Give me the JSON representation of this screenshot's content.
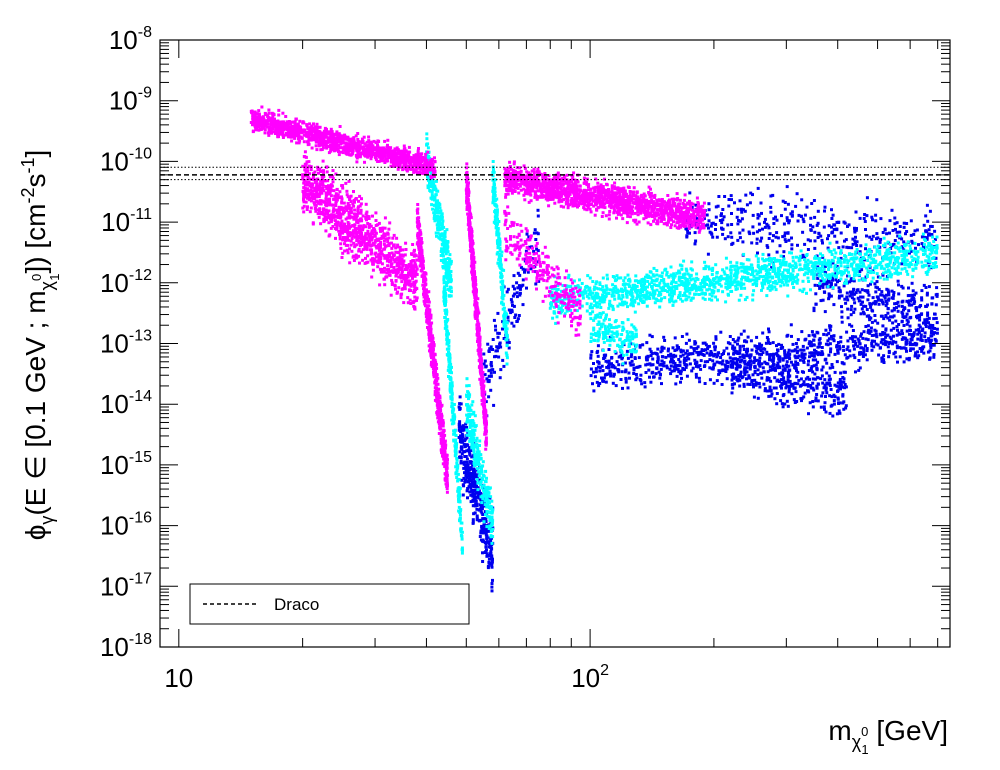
{
  "chart_data": {
    "type": "scatter",
    "x_scale": "log",
    "y_scale": "log",
    "xlim": [
      9,
      750
    ],
    "ylim": [
      1e-18,
      1e-08
    ],
    "x_ticks": [
      {
        "value": 10,
        "base": "10",
        "exp": ""
      },
      {
        "value": 100,
        "base": "10",
        "exp": "2"
      }
    ],
    "y_ticks": [
      {
        "value": 1e-08,
        "base": "10",
        "exp": "-8"
      },
      {
        "value": 1e-09,
        "base": "10",
        "exp": "-9"
      },
      {
        "value": 1e-10,
        "base": "10",
        "exp": "-10"
      },
      {
        "value": 1e-11,
        "base": "10",
        "exp": "-11"
      },
      {
        "value": 1e-12,
        "base": "10",
        "exp": "-12"
      },
      {
        "value": 1e-13,
        "base": "10",
        "exp": "-13"
      },
      {
        "value": 1e-14,
        "base": "10",
        "exp": "-14"
      },
      {
        "value": 1e-15,
        "base": "10",
        "exp": "-15"
      },
      {
        "value": 1e-16,
        "base": "10",
        "exp": "-16"
      },
      {
        "value": 1e-17,
        "base": "10",
        "exp": "-17"
      },
      {
        "value": 1e-18,
        "base": "10",
        "exp": "-18"
      }
    ],
    "xlabel": "m_χ₁⁰ [GeV]",
    "ylabel": "φ_γ(E ∈ [0.1 GeV ; m_χ₁⁰]) [cm⁻²s⁻¹]",
    "grid": false,
    "legend_position": "bottom-left",
    "colors": {
      "magenta": "#ff00ff",
      "cyan": "#00ffff",
      "blue": "#0000ee",
      "axis": "#000000"
    },
    "reference_lines": [
      {
        "name": "Draco",
        "style": "dashed",
        "y": 6e-11
      },
      {
        "style": "dotted",
        "y": 8e-11
      },
      {
        "style": "dotted",
        "y": 5e-11
      }
    ],
    "series": [
      {
        "color": "#0000ee",
        "regions": [
          {
            "x": [
              48,
              58
            ],
            "y": [
              3e-15,
              4e-17
            ],
            "spread": 0.6,
            "n": 380
          },
          {
            "x": [
              55,
              75
            ],
            "y": [
              2e-14,
              5e-12
            ],
            "spread": 0.6,
            "n": 140
          },
          {
            "x": [
              100,
              700
            ],
            "y": [
              4e-14,
              1.2e-13
            ],
            "spread": 0.35,
            "n": 900
          },
          {
            "x": [
              220,
              420
            ],
            "y": [
              4e-14,
              1.5e-14
            ],
            "spread": 0.4,
            "n": 350
          },
          {
            "x": [
              170,
              700
            ],
            "y": [
              1.2e-11,
              5e-12
            ],
            "spread": 0.5,
            "n": 400
          },
          {
            "x": [
              350,
              700
            ],
            "y": [
              1e-12,
              3e-13
            ],
            "spread": 0.45,
            "n": 350
          }
        ]
      },
      {
        "color": "#00ffff",
        "regions": [
          {
            "x": [
              40,
              46
            ],
            "y": [
              1.2e-10,
              1e-12
            ],
            "spread": 0.4,
            "n": 300
          },
          {
            "x": [
              44,
              49
            ],
            "y": [
              1e-12,
              5e-17
            ],
            "spread": 0.35,
            "n": 250
          },
          {
            "x": [
              50,
              58
            ],
            "y": [
              1e-14,
              1e-16
            ],
            "spread": 0.45,
            "n": 250
          },
          {
            "x": [
              58,
              63
            ],
            "y": [
              5e-11,
              1e-13
            ],
            "spread": 0.4,
            "n": 200
          },
          {
            "x": [
              80,
              700
            ],
            "y": [
              5e-13,
              3e-12
            ],
            "spread": 0.3,
            "n": 1500
          },
          {
            "x": [
              100,
              130
            ],
            "y": [
              2e-13,
              1e-13
            ],
            "spread": 0.3,
            "n": 150
          }
        ]
      },
      {
        "color": "#ff00ff",
        "regions": [
          {
            "x": [
              15,
              42
            ],
            "y": [
              5e-10,
              8e-11
            ],
            "spread": 0.18,
            "n": 1300
          },
          {
            "x": [
              20,
              38
            ],
            "y": [
              5e-11,
              1e-12
            ],
            "spread": 0.5,
            "n": 1000
          },
          {
            "x": [
              38,
              45
            ],
            "y": [
              1e-11,
              6e-16
            ],
            "spread": 0.35,
            "n": 600
          },
          {
            "x": [
              50,
              56
            ],
            "y": [
              5e-11,
              3e-15
            ],
            "spread": 0.35,
            "n": 600
          },
          {
            "x": [
              62,
              190
            ],
            "y": [
              5e-11,
              1.2e-11
            ],
            "spread": 0.25,
            "n": 1500
          },
          {
            "x": [
              62,
              95
            ],
            "y": [
              8e-12,
              3e-13
            ],
            "spread": 0.4,
            "n": 250
          }
        ]
      }
    ],
    "legend": [
      {
        "label": "Draco",
        "style": "dashed"
      }
    ]
  }
}
